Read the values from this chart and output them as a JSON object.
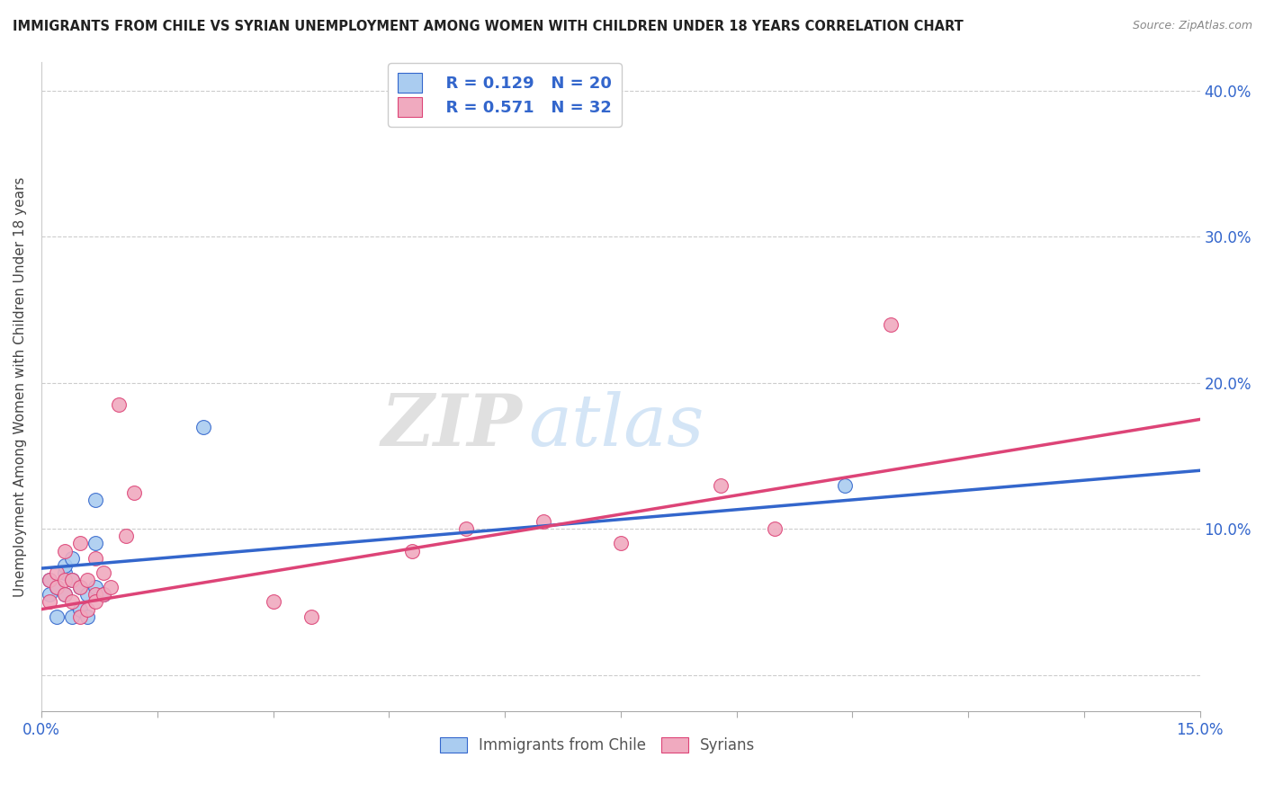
{
  "title": "IMMIGRANTS FROM CHILE VS SYRIAN UNEMPLOYMENT AMONG WOMEN WITH CHILDREN UNDER 18 YEARS CORRELATION CHART",
  "source": "Source: ZipAtlas.com",
  "ylabel": "Unemployment Among Women with Children Under 18 years",
  "legend1_r": "R = 0.129",
  "legend1_n": "N = 20",
  "legend2_r": "R = 0.571",
  "legend2_n": "N = 32",
  "xlim": [
    0.0,
    0.15
  ],
  "ylim": [
    -0.025,
    0.42
  ],
  "yticks": [
    0.0,
    0.1,
    0.2,
    0.3,
    0.4
  ],
  "ytick_labels": [
    "",
    "10.0%",
    "20.0%",
    "30.0%",
    "40.0%"
  ],
  "xticks": [
    0.0,
    0.015,
    0.03,
    0.045,
    0.06,
    0.075,
    0.09,
    0.105,
    0.12,
    0.135,
    0.15
  ],
  "blue_scatter_x": [
    0.001,
    0.001,
    0.002,
    0.002,
    0.003,
    0.003,
    0.003,
    0.004,
    0.004,
    0.004,
    0.005,
    0.005,
    0.006,
    0.006,
    0.007,
    0.007,
    0.007,
    0.008,
    0.021,
    0.104
  ],
  "blue_scatter_y": [
    0.065,
    0.055,
    0.06,
    0.04,
    0.07,
    0.075,
    0.055,
    0.04,
    0.065,
    0.08,
    0.06,
    0.045,
    0.055,
    0.04,
    0.06,
    0.09,
    0.12,
    0.055,
    0.17,
    0.13
  ],
  "pink_scatter_x": [
    0.001,
    0.001,
    0.002,
    0.002,
    0.003,
    0.003,
    0.003,
    0.004,
    0.004,
    0.005,
    0.005,
    0.005,
    0.006,
    0.006,
    0.007,
    0.007,
    0.007,
    0.008,
    0.008,
    0.009,
    0.01,
    0.011,
    0.012,
    0.03,
    0.035,
    0.048,
    0.055,
    0.065,
    0.075,
    0.088,
    0.095,
    0.11
  ],
  "pink_scatter_y": [
    0.05,
    0.065,
    0.06,
    0.07,
    0.055,
    0.065,
    0.085,
    0.05,
    0.065,
    0.04,
    0.06,
    0.09,
    0.045,
    0.065,
    0.055,
    0.05,
    0.08,
    0.07,
    0.055,
    0.06,
    0.185,
    0.095,
    0.125,
    0.05,
    0.04,
    0.085,
    0.1,
    0.105,
    0.09,
    0.13,
    0.1,
    0.24
  ],
  "blue_line_x": [
    0.0,
    0.15
  ],
  "blue_line_y": [
    0.073,
    0.14
  ],
  "pink_line_x": [
    0.0,
    0.15
  ],
  "pink_line_y": [
    0.045,
    0.175
  ],
  "scatter_color_blue": "#aaccf0",
  "scatter_color_pink": "#f0aabf",
  "line_color_blue": "#3366cc",
  "line_color_pink": "#dd4477",
  "watermark_zip": "ZIP",
  "watermark_atlas": "atlas",
  "background_color": "#ffffff",
  "grid_color": "#cccccc",
  "title_color": "#222222",
  "source_color": "#888888",
  "ylabel_color": "#444444",
  "tick_label_color_blue": "#3366cc",
  "tick_label_color_gray": "#888888"
}
